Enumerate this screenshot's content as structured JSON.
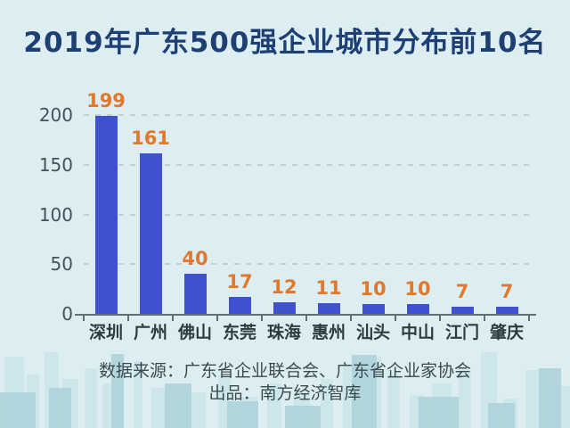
{
  "title": "2019年广东500强企业城市分布前10名",
  "colors": {
    "background": "#ddeef2",
    "title_color": "#1d3f73",
    "bar_color": "#3f51cf",
    "value_label_color": "#e0782e",
    "axis_label_color": "#44525a",
    "axis_line_color": "#5f6f74",
    "gridline_color": "#c4cfd3",
    "source_text_color": "#3a4b4f",
    "skyline_back_color": "#cde6ea",
    "skyline_front_color": "#aed3da"
  },
  "chart_data": {
    "type": "bar",
    "categories": [
      "深圳",
      "广州",
      "佛山",
      "东莞",
      "珠海",
      "惠州",
      "汕头",
      "中山",
      "江门",
      "肇庆"
    ],
    "values": [
      199,
      161,
      40,
      17,
      12,
      11,
      10,
      10,
      7,
      7
    ],
    "title": "2019年广东500强企业城市分布前10名",
    "xlabel": "",
    "ylabel": "",
    "ylim": [
      0,
      200
    ],
    "yticks": [
      0,
      50,
      100,
      150,
      200
    ],
    "grid": true,
    "gridline_style": "dashed",
    "legend": "none",
    "value_labels": "above-bars"
  },
  "footer": {
    "source_line": "数据来源：广东省企业联合会、广东省企业家协会",
    "producer_line": "出品：南方经济智库"
  }
}
